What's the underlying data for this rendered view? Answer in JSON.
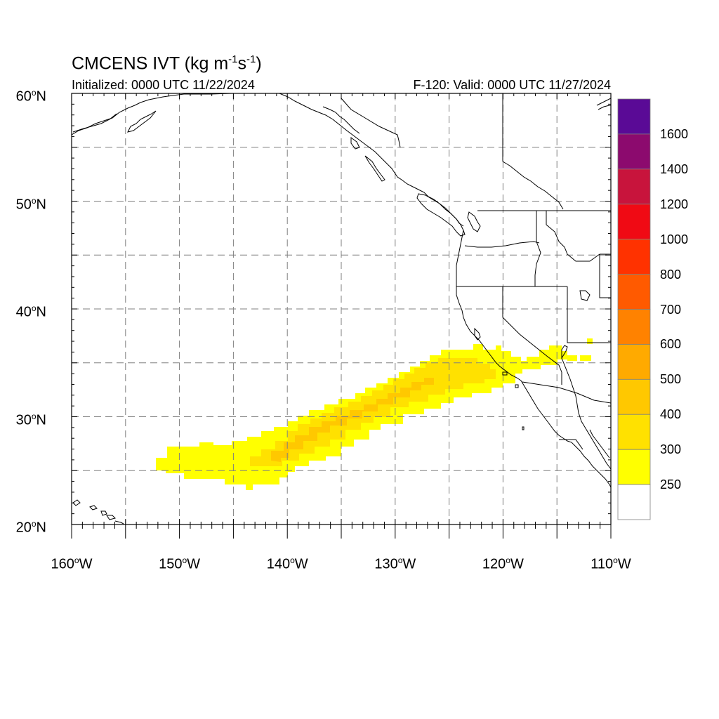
{
  "title": {
    "main": "CMCENS IVT (kg m",
    "sup1": "-1",
    "mid": "s",
    "sup2": "-1",
    "end": ")"
  },
  "subtitle": {
    "left": "Initialized: 0000 UTC 11/22/2024",
    "right": "F-120: Valid: 0000 UTC 11/27/2024"
  },
  "map": {
    "lon_range": [
      -160,
      -110
    ],
    "lat_range": [
      20,
      60
    ],
    "lat_labels": [
      {
        "lat": 60,
        "num": "60",
        "suf": "N"
      },
      {
        "lat": 50,
        "num": "50",
        "suf": "N"
      },
      {
        "lat": 40,
        "num": "40",
        "suf": "N"
      },
      {
        "lat": 30,
        "num": "30",
        "suf": "N"
      },
      {
        "lat": 20,
        "num": "20",
        "suf": "N"
      }
    ],
    "lon_labels": [
      {
        "lon": -160,
        "num": "160",
        "suf": "W"
      },
      {
        "lon": -150,
        "num": "150",
        "suf": "W"
      },
      {
        "lon": -140,
        "num": "140",
        "suf": "W"
      },
      {
        "lon": -130,
        "num": "130",
        "suf": "W"
      },
      {
        "lon": -120,
        "num": "120",
        "suf": "W"
      },
      {
        "lon": -110,
        "num": "110",
        "suf": "W"
      }
    ],
    "grid_lons": [
      -155,
      -150,
      -145,
      -140,
      -135,
      -130,
      -125,
      -120,
      -115
    ],
    "grid_lats": [
      25,
      30,
      35,
      40,
      45,
      50,
      55
    ],
    "colors": {
      "coast": "#000000",
      "border": "#000000",
      "grid": "#7f7f7f"
    }
  },
  "colorbar": {
    "levels": [
      "1600",
      "1400",
      "1200",
      "1000",
      "800",
      "700",
      "600",
      "500",
      "400",
      "300",
      "250"
    ],
    "colors_top_to_bottom": [
      "#5a0a96",
      "#8c0a6e",
      "#c8143c",
      "#f00a14",
      "#ff3200",
      "#ff5a00",
      "#ff8200",
      "#ffaa00",
      "#ffc800",
      "#ffe100",
      "#ffff00",
      "#ffffff"
    ]
  },
  "ivt_plume": {
    "colors": {
      "c250": "#ffff00",
      "c300": "#ffe100",
      "c400": "#ffc800"
    }
  }
}
